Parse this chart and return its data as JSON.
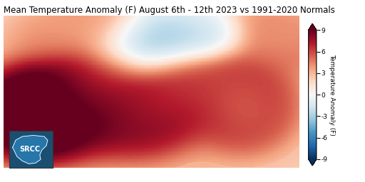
{
  "title": "Mean Temperature Anomaly (F) August 6th - 12th 2023 vs 1991-2020 Normals",
  "colorbar_label": "Temperature Anomaly (F)",
  "colorbar_ticks": [
    -9,
    -6,
    -3,
    0,
    3,
    6,
    9
  ],
  "vmin": -9,
  "vmax": 9,
  "cmap": "RdBu_r",
  "extent": [
    -107.5,
    -74.5,
    23.5,
    40.5
  ],
  "fig_width": 5.12,
  "fig_height": 2.56,
  "dpi": 100,
  "title_fontsize": 8.5,
  "colorbar_label_fontsize": 6.5,
  "colorbar_tick_fontsize": 6.5,
  "background_color": "#ffffff",
  "srcc_box_color": "#1b4f72",
  "county_linewidth": 0.15,
  "state_linewidth": 0.45,
  "coast_linewidth": 0.45,
  "anomaly_centers": [
    {
      "lon": -104.0,
      "lat": 29.5,
      "value": 9.5,
      "spread_lon": 4.5,
      "spread_lat": 3.5
    },
    {
      "lon": -98.0,
      "lat": 31.5,
      "value": 7.0,
      "spread_lon": 5.0,
      "spread_lat": 4.0
    },
    {
      "lon": -96.0,
      "lat": 34.0,
      "value": 5.0,
      "spread_lon": 4.0,
      "spread_lat": 3.0
    },
    {
      "lon": -92.0,
      "lat": 30.5,
      "value": 5.5,
      "spread_lon": 4.0,
      "spread_lat": 3.5
    },
    {
      "lon": -88.0,
      "lat": 32.5,
      "value": 4.5,
      "spread_lon": 4.0,
      "spread_lat": 3.5
    },
    {
      "lon": -83.0,
      "lat": 33.0,
      "value": 4.0,
      "spread_lon": 4.5,
      "spread_lat": 3.5
    },
    {
      "lon": -80.5,
      "lat": 30.0,
      "value": 3.5,
      "spread_lon": 3.5,
      "spread_lat": 3.0
    },
    {
      "lon": -93.0,
      "lat": 36.5,
      "value": -5.5,
      "spread_lon": 4.0,
      "spread_lat": 2.5
    },
    {
      "lon": -89.0,
      "lat": 37.5,
      "value": -6.0,
      "spread_lon": 4.5,
      "spread_lat": 2.5
    },
    {
      "lon": -85.0,
      "lat": 38.0,
      "value": -4.0,
      "spread_lon": 3.5,
      "spread_lat": 2.0
    },
    {
      "lon": -99.0,
      "lat": 38.5,
      "value": 2.0,
      "spread_lon": 5.0,
      "spread_lat": 2.5
    },
    {
      "lon": -77.0,
      "lat": 38.0,
      "value": 2.5,
      "spread_lon": 4.0,
      "spread_lat": 2.5
    }
  ]
}
